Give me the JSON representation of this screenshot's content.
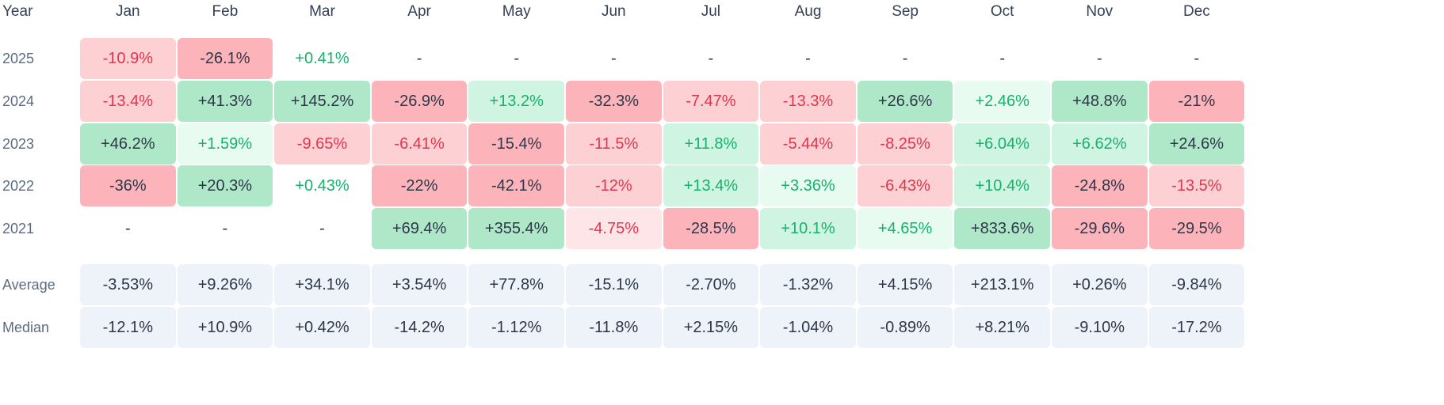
{
  "header": {
    "year_label": "Year",
    "months": [
      "Jan",
      "Feb",
      "Mar",
      "Apr",
      "May",
      "Jun",
      "Jul",
      "Aug",
      "Sep",
      "Oct",
      "Nov",
      "Dec"
    ]
  },
  "colors": {
    "neg_strong": "#fcb4ba",
    "neg_mid": "#fdd0d4",
    "neg_light": "#fee6e8",
    "pos_strong": "#aee8c9",
    "pos_mid": "#cff5e2",
    "pos_light": "#e8fbf0",
    "stat_bg": "#eef2f9",
    "negative_text": "#e0364d",
    "positive_text": "#16b26b"
  },
  "chart_data": {
    "type": "heatmap",
    "x_categories": [
      "Jan",
      "Feb",
      "Mar",
      "Apr",
      "May",
      "Jun",
      "Jul",
      "Aug",
      "Sep",
      "Oct",
      "Nov",
      "Dec"
    ],
    "rows": [
      {
        "year": "2025",
        "cells": [
          {
            "text": "-10.9%",
            "value": -10.9,
            "shade": "neg-mid"
          },
          {
            "text": "-26.1%",
            "value": -26.1,
            "shade": "neg-strong"
          },
          {
            "text": "+0.41%",
            "value": 0.41,
            "shade": "plain-pos"
          },
          {
            "text": "-",
            "value": null,
            "shade": "empty"
          },
          {
            "text": "-",
            "value": null,
            "shade": "empty"
          },
          {
            "text": "-",
            "value": null,
            "shade": "empty"
          },
          {
            "text": "-",
            "value": null,
            "shade": "empty"
          },
          {
            "text": "-",
            "value": null,
            "shade": "empty"
          },
          {
            "text": "-",
            "value": null,
            "shade": "empty"
          },
          {
            "text": "-",
            "value": null,
            "shade": "empty"
          },
          {
            "text": "-",
            "value": null,
            "shade": "empty"
          },
          {
            "text": "-",
            "value": null,
            "shade": "empty"
          }
        ]
      },
      {
        "year": "2024",
        "cells": [
          {
            "text": "-13.4%",
            "value": -13.4,
            "shade": "neg-mid"
          },
          {
            "text": "+41.3%",
            "value": 41.3,
            "shade": "pos-strong"
          },
          {
            "text": "+145.2%",
            "value": 145.2,
            "shade": "pos-strong"
          },
          {
            "text": "-26.9%",
            "value": -26.9,
            "shade": "neg-strong"
          },
          {
            "text": "+13.2%",
            "value": 13.2,
            "shade": "pos-mid"
          },
          {
            "text": "-32.3%",
            "value": -32.3,
            "shade": "neg-strong"
          },
          {
            "text": "-7.47%",
            "value": -7.47,
            "shade": "neg-mid"
          },
          {
            "text": "-13.3%",
            "value": -13.3,
            "shade": "neg-mid"
          },
          {
            "text": "+26.6%",
            "value": 26.6,
            "shade": "pos-strong"
          },
          {
            "text": "+2.46%",
            "value": 2.46,
            "shade": "pos-light"
          },
          {
            "text": "+48.8%",
            "value": 48.8,
            "shade": "pos-strong"
          },
          {
            "text": "-21%",
            "value": -21,
            "shade": "neg-strong"
          }
        ]
      },
      {
        "year": "2023",
        "cells": [
          {
            "text": "+46.2%",
            "value": 46.2,
            "shade": "pos-strong"
          },
          {
            "text": "+1.59%",
            "value": 1.59,
            "shade": "pos-light"
          },
          {
            "text": "-9.65%",
            "value": -9.65,
            "shade": "neg-mid"
          },
          {
            "text": "-6.41%",
            "value": -6.41,
            "shade": "neg-mid"
          },
          {
            "text": "-15.4%",
            "value": -15.4,
            "shade": "neg-strong"
          },
          {
            "text": "-11.5%",
            "value": -11.5,
            "shade": "neg-mid"
          },
          {
            "text": "+11.8%",
            "value": 11.8,
            "shade": "pos-mid"
          },
          {
            "text": "-5.44%",
            "value": -5.44,
            "shade": "neg-mid"
          },
          {
            "text": "-8.25%",
            "value": -8.25,
            "shade": "neg-mid"
          },
          {
            "text": "+6.04%",
            "value": 6.04,
            "shade": "pos-mid"
          },
          {
            "text": "+6.62%",
            "value": 6.62,
            "shade": "pos-mid"
          },
          {
            "text": "+24.6%",
            "value": 24.6,
            "shade": "pos-strong"
          }
        ]
      },
      {
        "year": "2022",
        "cells": [
          {
            "text": "-36%",
            "value": -36,
            "shade": "neg-strong"
          },
          {
            "text": "+20.3%",
            "value": 20.3,
            "shade": "pos-strong"
          },
          {
            "text": "+0.43%",
            "value": 0.43,
            "shade": "plain-pos"
          },
          {
            "text": "-22%",
            "value": -22,
            "shade": "neg-strong"
          },
          {
            "text": "-42.1%",
            "value": -42.1,
            "shade": "neg-strong"
          },
          {
            "text": "-12%",
            "value": -12,
            "shade": "neg-mid"
          },
          {
            "text": "+13.4%",
            "value": 13.4,
            "shade": "pos-mid"
          },
          {
            "text": "+3.36%",
            "value": 3.36,
            "shade": "pos-light"
          },
          {
            "text": "-6.43%",
            "value": -6.43,
            "shade": "neg-mid"
          },
          {
            "text": "+10.4%",
            "value": 10.4,
            "shade": "pos-mid"
          },
          {
            "text": "-24.8%",
            "value": -24.8,
            "shade": "neg-strong"
          },
          {
            "text": "-13.5%",
            "value": -13.5,
            "shade": "neg-mid"
          }
        ]
      },
      {
        "year": "2021",
        "cells": [
          {
            "text": "-",
            "value": null,
            "shade": "empty"
          },
          {
            "text": "-",
            "value": null,
            "shade": "empty"
          },
          {
            "text": "-",
            "value": null,
            "shade": "empty"
          },
          {
            "text": "+69.4%",
            "value": 69.4,
            "shade": "pos-strong"
          },
          {
            "text": "+355.4%",
            "value": 355.4,
            "shade": "pos-strong"
          },
          {
            "text": "-4.75%",
            "value": -4.75,
            "shade": "neg-light"
          },
          {
            "text": "-28.5%",
            "value": -28.5,
            "shade": "neg-strong"
          },
          {
            "text": "+10.1%",
            "value": 10.1,
            "shade": "pos-mid"
          },
          {
            "text": "+4.65%",
            "value": 4.65,
            "shade": "pos-light"
          },
          {
            "text": "+833.6%",
            "value": 833.6,
            "shade": "pos-strong"
          },
          {
            "text": "-29.6%",
            "value": -29.6,
            "shade": "neg-strong"
          },
          {
            "text": "-29.5%",
            "value": -29.5,
            "shade": "neg-strong"
          }
        ]
      }
    ],
    "summary_rows": [
      {
        "label": "Average",
        "cells": [
          "-3.53%",
          "+9.26%",
          "+34.1%",
          "+3.54%",
          "+77.8%",
          "-15.1%",
          "-2.70%",
          "-1.32%",
          "+4.15%",
          "+213.1%",
          "+0.26%",
          "-9.84%"
        ]
      },
      {
        "label": "Median",
        "cells": [
          "-12.1%",
          "+10.9%",
          "+0.42%",
          "-14.2%",
          "-1.12%",
          "-11.8%",
          "+2.15%",
          "-1.04%",
          "-0.89%",
          "+8.21%",
          "-9.10%",
          "-17.2%"
        ]
      }
    ]
  }
}
